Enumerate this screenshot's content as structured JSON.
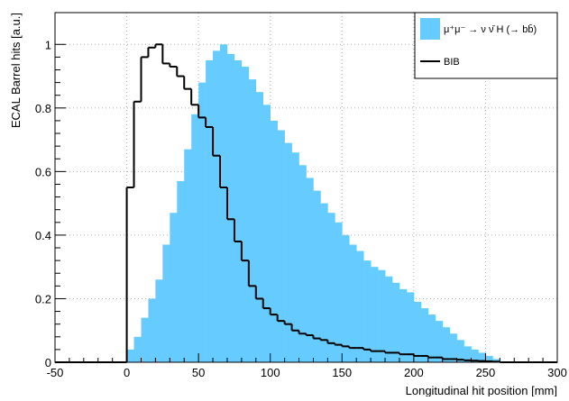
{
  "chart_data": {
    "type": "histogram",
    "xlabel": "Longitudinal hit position [mm]",
    "ylabel": "ECAL Barrel hits [a.u.]",
    "bins": [
      0,
      5,
      10,
      15,
      20,
      25,
      30,
      35,
      40,
      45,
      50,
      55,
      60,
      65,
      70,
      75,
      80,
      85,
      90,
      95,
      100,
      105,
      110,
      115,
      120,
      125,
      130,
      135,
      140,
      145,
      150,
      155,
      160,
      165,
      170,
      175,
      180,
      185,
      190,
      195,
      200,
      205,
      210,
      215,
      220,
      225,
      230,
      235,
      240,
      245,
      250,
      255,
      260
    ],
    "series": [
      {
        "name": "μ⁺μ⁻ → ν ν̄ H (→ bb̄)",
        "color": "#66ccff",
        "style": "filled",
        "values": [
          0.04,
          0.08,
          0.14,
          0.2,
          0.26,
          0.37,
          0.47,
          0.57,
          0.67,
          0.78,
          0.88,
          0.95,
          0.98,
          1.0,
          0.97,
          0.95,
          0.93,
          0.89,
          0.85,
          0.81,
          0.76,
          0.73,
          0.69,
          0.66,
          0.62,
          0.58,
          0.54,
          0.5,
          0.47,
          0.44,
          0.4,
          0.37,
          0.35,
          0.32,
          0.3,
          0.29,
          0.27,
          0.25,
          0.23,
          0.22,
          0.19,
          0.17,
          0.15,
          0.13,
          0.11,
          0.09,
          0.07,
          0.05,
          0.04,
          0.03,
          0.02,
          0.01
        ]
      },
      {
        "name": "BIB",
        "color": "#000000",
        "style": "step",
        "values": [
          0.55,
          0.82,
          0.96,
          0.99,
          1.0,
          0.94,
          0.93,
          0.9,
          0.86,
          0.81,
          0.77,
          0.74,
          0.65,
          0.55,
          0.45,
          0.38,
          0.32,
          0.24,
          0.2,
          0.17,
          0.15,
          0.13,
          0.12,
          0.1,
          0.09,
          0.085,
          0.075,
          0.07,
          0.06,
          0.055,
          0.05,
          0.045,
          0.045,
          0.04,
          0.035,
          0.035,
          0.03,
          0.03,
          0.025,
          0.025,
          0.02,
          0.02,
          0.015,
          0.015,
          0.01,
          0.01,
          0.008,
          0.006,
          0.005,
          0.004,
          0.003,
          0.002
        ]
      }
    ],
    "xlim": [
      -50,
      300
    ],
    "xticks": [
      -50,
      0,
      50,
      100,
      150,
      200,
      250,
      300
    ],
    "ylim": [
      0,
      1.1
    ],
    "yticks": [
      0,
      0.2,
      0.4,
      0.6,
      0.8,
      1
    ],
    "grid": true,
    "legend": "upper right"
  }
}
